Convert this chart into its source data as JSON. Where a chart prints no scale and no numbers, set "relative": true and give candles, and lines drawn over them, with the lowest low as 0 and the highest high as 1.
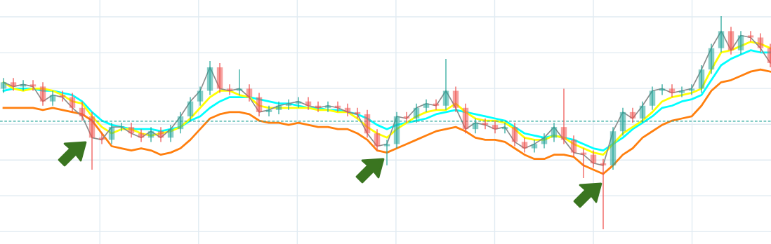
{
  "chart_data": {
    "type": "candlestick",
    "relative": true,
    "categories": [
      null,
      null,
      null,
      null,
      null,
      null,
      null,
      null,
      null,
      null,
      null,
      null,
      null,
      null,
      null,
      null,
      null,
      null,
      null,
      null,
      null,
      null,
      null,
      null,
      null,
      null,
      null,
      null,
      null,
      null,
      null,
      null,
      null,
      null,
      null,
      null,
      null,
      null,
      null,
      null,
      null,
      null,
      null,
      null,
      null,
      null,
      null,
      null,
      null,
      null,
      null,
      null,
      null,
      null,
      null,
      null,
      null,
      null,
      null,
      null,
      null,
      null,
      null,
      null,
      null,
      null,
      null,
      null,
      null,
      null,
      null,
      null,
      null,
      null,
      null,
      null,
      null,
      null,
      null
    ],
    "ohlc": [
      [
        0.66,
        0.71,
        0.64,
        0.69
      ],
      [
        0.69,
        0.71,
        0.65,
        0.67
      ],
      [
        0.67,
        0.7,
        0.65,
        0.68
      ],
      [
        0.68,
        0.7,
        0.65,
        0.67
      ],
      [
        0.67,
        0.69,
        0.58,
        0.6
      ],
      [
        0.6,
        0.65,
        0.58,
        0.63
      ],
      [
        0.63,
        0.65,
        0.6,
        0.62
      ],
      [
        0.62,
        0.64,
        0.55,
        0.57
      ],
      [
        0.57,
        0.6,
        0.51,
        0.53
      ],
      [
        0.53,
        0.55,
        0.28,
        0.43
      ],
      [
        0.43,
        0.45,
        0.4,
        0.42
      ],
      [
        0.42,
        0.5,
        0.4,
        0.48
      ],
      [
        0.48,
        0.5,
        0.46,
        0.48
      ],
      [
        0.48,
        0.5,
        0.43,
        0.45
      ],
      [
        0.45,
        0.47,
        0.41,
        0.43
      ],
      [
        0.43,
        0.48,
        0.41,
        0.46
      ],
      [
        0.46,
        0.48,
        0.41,
        0.43
      ],
      [
        0.43,
        0.49,
        0.41,
        0.47
      ],
      [
        0.47,
        0.55,
        0.45,
        0.53
      ],
      [
        0.53,
        0.62,
        0.51,
        0.6
      ],
      [
        0.6,
        0.67,
        0.58,
        0.65
      ],
      [
        0.65,
        0.79,
        0.63,
        0.76
      ],
      [
        0.76,
        0.78,
        0.64,
        0.66
      ],
      [
        0.66,
        0.68,
        0.63,
        0.65
      ],
      [
        0.65,
        0.75,
        0.63,
        0.66
      ],
      [
        0.66,
        0.68,
        0.6,
        0.62
      ],
      [
        0.62,
        0.64,
        0.53,
        0.55
      ],
      [
        0.55,
        0.58,
        0.53,
        0.56
      ],
      [
        0.56,
        0.6,
        0.54,
        0.58
      ],
      [
        0.58,
        0.61,
        0.56,
        0.59
      ],
      [
        0.59,
        0.62,
        0.57,
        0.6
      ],
      [
        0.6,
        0.62,
        0.56,
        0.58
      ],
      [
        0.58,
        0.6,
        0.55,
        0.57
      ],
      [
        0.57,
        0.6,
        0.55,
        0.58
      ],
      [
        0.58,
        0.6,
        0.55,
        0.57
      ],
      [
        0.57,
        0.59,
        0.53,
        0.55
      ],
      [
        0.55,
        0.57,
        0.52,
        0.54
      ],
      [
        0.54,
        0.56,
        0.43,
        0.45
      ],
      [
        0.45,
        0.47,
        0.37,
        0.39
      ],
      [
        0.39,
        0.42,
        0.3,
        0.4
      ],
      [
        0.4,
        0.55,
        0.38,
        0.53
      ],
      [
        0.53,
        0.55,
        0.5,
        0.52
      ],
      [
        0.52,
        0.59,
        0.5,
        0.57
      ],
      [
        0.57,
        0.61,
        0.55,
        0.59
      ],
      [
        0.59,
        0.61,
        0.56,
        0.58
      ],
      [
        0.58,
        0.8,
        0.56,
        0.65
      ],
      [
        0.65,
        0.67,
        0.55,
        0.57
      ],
      [
        0.57,
        0.59,
        0.45,
        0.47
      ],
      [
        0.47,
        0.52,
        0.45,
        0.5
      ],
      [
        0.5,
        0.52,
        0.47,
        0.49
      ],
      [
        0.49,
        0.51,
        0.45,
        0.47
      ],
      [
        0.47,
        0.5,
        0.45,
        0.48
      ],
      [
        0.48,
        0.5,
        0.39,
        0.41
      ],
      [
        0.41,
        0.43,
        0.36,
        0.38
      ],
      [
        0.38,
        0.42,
        0.36,
        0.4
      ],
      [
        0.4,
        0.45,
        0.38,
        0.43
      ],
      [
        0.43,
        0.5,
        0.41,
        0.48
      ],
      [
        0.48,
        0.66,
        0.4,
        0.42
      ],
      [
        0.42,
        0.44,
        0.34,
        0.36
      ],
      [
        0.36,
        0.38,
        0.24,
        0.35
      ],
      [
        0.35,
        0.37,
        0.29,
        0.31
      ],
      [
        0.31,
        0.33,
        0,
        0.3
      ],
      [
        0.3,
        0.48,
        0.28,
        0.46
      ],
      [
        0.46,
        0.57,
        0.44,
        0.55
      ],
      [
        0.55,
        0.57,
        0.5,
        0.52
      ],
      [
        0.52,
        0.6,
        0.5,
        0.58
      ],
      [
        0.58,
        0.67,
        0.56,
        0.65
      ],
      [
        0.65,
        0.68,
        0.63,
        0.66
      ],
      [
        0.66,
        0.68,
        0.62,
        0.64
      ],
      [
        0.64,
        0.67,
        0.62,
        0.65
      ],
      [
        0.65,
        0.68,
        0.63,
        0.66
      ],
      [
        0.66,
        0.77,
        0.64,
        0.75
      ],
      [
        0.75,
        0.87,
        0.73,
        0.85
      ],
      [
        0.85,
        1.0,
        0.83,
        0.93
      ],
      [
        0.93,
        0.95,
        0.82,
        0.84
      ],
      [
        0.84,
        0.93,
        0.82,
        0.91
      ],
      [
        0.91,
        0.93,
        0.88,
        0.9
      ],
      [
        0.9,
        0.92,
        0.83,
        0.85
      ],
      [
        0.85,
        0.87,
        0.76,
        0.78
      ]
    ],
    "colors": [
      "#26a69a",
      "#ef5350",
      "#26a69a",
      "#ef5350",
      "#ef5350",
      "#26a69a",
      "#ef5350",
      "#ef5350",
      "#ef5350",
      "#ef5350",
      "#ef5350",
      "#26a69a",
      "#26a69a",
      "#ef5350",
      "#ef5350",
      "#26a69a",
      "#ef5350",
      "#26a69a",
      "#26a69a",
      "#26a69a",
      "#26a69a",
      "#26a69a",
      "#ef5350",
      "#ef5350",
      "#26a69a",
      "#ef5350",
      "#ef5350",
      "#26a69a",
      "#26a69a",
      "#26a69a",
      "#26a69a",
      "#ef5350",
      "#ef5350",
      "#26a69a",
      "#ef5350",
      "#ef5350",
      "#ef5350",
      "#ef5350",
      "#ef5350",
      "#26a69a",
      "#26a69a",
      "#ef5350",
      "#26a69a",
      "#26a69a",
      "#ef5350",
      "#26a69a",
      "#ef5350",
      "#ef5350",
      "#26a69a",
      "#ef5350",
      "#ef5350",
      "#26a69a",
      "#ef5350",
      "#ef5350",
      "#26a69a",
      "#26a69a",
      "#26a69a",
      "#ef5350",
      "#ef5350",
      "#ef5350",
      "#ef5350",
      "#ef5350",
      "#26a69a",
      "#26a69a",
      "#ef5350",
      "#26a69a",
      "#26a69a",
      "#26a69a",
      "#ef5350",
      "#26a69a",
      "#26a69a",
      "#26a69a",
      "#26a69a",
      "#26a69a",
      "#ef5350",
      "#26a69a",
      "#ef5350",
      "#ef5350",
      "#ef5350"
    ],
    "series": [
      {
        "type": "line",
        "color": "#ff7f0e",
        "values": [
          0.57,
          0.57,
          0.57,
          0.57,
          0.56,
          0.57,
          0.56,
          0.55,
          0.54,
          0.51,
          0.45,
          0.39,
          0.38,
          0.37,
          0.38,
          0.37,
          0.35,
          0.36,
          0.38,
          0.42,
          0.47,
          0.52,
          0.54,
          0.55,
          0.55,
          0.54,
          0.51,
          0.5,
          0.5,
          0.49,
          0.5,
          0.49,
          0.48,
          0.48,
          0.47,
          0.47,
          0.45,
          0.42,
          0.37,
          0.36,
          0.38,
          0.4,
          0.42,
          0.44,
          0.46,
          0.47,
          0.48,
          0.46,
          0.43,
          0.42,
          0.42,
          0.41,
          0.38,
          0.35,
          0.33,
          0.33,
          0.35,
          0.35,
          0.34,
          0.3,
          0.28,
          0.26,
          0.3,
          0.35,
          0.38,
          0.43,
          0.46,
          0.49,
          0.51,
          0.52,
          0.53,
          0.58,
          0.65,
          0.69,
          0.7,
          0.72,
          0.74,
          0.75,
          0.74
        ]
      },
      {
        "type": "line",
        "color": "#00ffff",
        "values": [
          0.65,
          0.66,
          0.66,
          0.66,
          0.65,
          0.65,
          0.64,
          0.63,
          0.6,
          0.55,
          0.51,
          0.49,
          0.48,
          0.47,
          0.47,
          0.47,
          0.46,
          0.47,
          0.48,
          0.51,
          0.53,
          0.57,
          0.6,
          0.62,
          0.62,
          0.62,
          0.61,
          0.6,
          0.59,
          0.59,
          0.58,
          0.57,
          0.57,
          0.56,
          0.56,
          0.55,
          0.54,
          0.52,
          0.49,
          0.47,
          0.49,
          0.5,
          0.51,
          0.52,
          0.54,
          0.55,
          0.56,
          0.55,
          0.54,
          0.53,
          0.52,
          0.51,
          0.48,
          0.45,
          0.44,
          0.43,
          0.44,
          0.43,
          0.42,
          0.4,
          0.38,
          0.37,
          0.4,
          0.43,
          0.47,
          0.5,
          0.53,
          0.57,
          0.58,
          0.6,
          0.61,
          0.63,
          0.7,
          0.77,
          0.8,
          0.82,
          0.84,
          0.83,
          0.83
        ]
      },
      {
        "type": "line",
        "color": "#ffff00",
        "values": [
          0.69,
          0.66,
          0.65,
          0.66,
          0.66,
          0.65,
          0.63,
          0.6,
          0.59,
          0.53,
          0.48,
          0.45,
          0.47,
          0.47,
          0.45,
          0.44,
          0.45,
          0.46,
          0.48,
          0.52,
          0.57,
          0.62,
          0.65,
          0.65,
          0.63,
          0.62,
          0.58,
          0.57,
          0.57,
          0.57,
          0.57,
          0.57,
          0.56,
          0.56,
          0.55,
          0.55,
          0.52,
          0.48,
          0.45,
          0.43,
          0.47,
          0.5,
          0.53,
          0.55,
          0.56,
          0.56,
          0.59,
          0.55,
          0.52,
          0.51,
          0.51,
          0.5,
          0.47,
          0.43,
          0.42,
          0.42,
          0.44,
          0.43,
          0.4,
          0.38,
          0.36,
          0.35,
          0.4,
          0.45,
          0.48,
          0.51,
          0.55,
          0.6,
          0.62,
          0.63,
          0.64,
          0.66,
          0.75,
          0.83,
          0.84,
          0.86,
          0.88,
          0.87,
          0.85
        ]
      },
      {
        "type": "line",
        "color": "#8c8c8c",
        "values": [
          0.69,
          0.67,
          0.68,
          0.67,
          0.6,
          0.63,
          0.62,
          0.57,
          0.53,
          0.43,
          0.42,
          0.48,
          0.48,
          0.45,
          0.43,
          0.46,
          0.43,
          0.47,
          0.53,
          0.6,
          0.65,
          0.76,
          0.66,
          0.65,
          0.66,
          0.62,
          0.55,
          0.56,
          0.58,
          0.59,
          0.6,
          0.58,
          0.57,
          0.58,
          0.57,
          0.55,
          0.54,
          0.45,
          0.39,
          0.4,
          0.53,
          0.52,
          0.57,
          0.59,
          0.58,
          0.65,
          0.57,
          0.47,
          0.5,
          0.49,
          0.47,
          0.48,
          0.41,
          0.38,
          0.4,
          0.43,
          0.48,
          0.42,
          0.36,
          0.35,
          0.31,
          0.3,
          0.46,
          0.55,
          0.52,
          0.58,
          0.65,
          0.66,
          0.64,
          0.65,
          0.66,
          0.75,
          0.85,
          0.93,
          0.84,
          0.91,
          0.9,
          0.85,
          0.78
        ]
      }
    ],
    "ref_lines": [
      {
        "axis": "y",
        "value": 0.507,
        "color": "#26a69a",
        "line_style": "dashed"
      }
    ],
    "grid": true
  }
}
